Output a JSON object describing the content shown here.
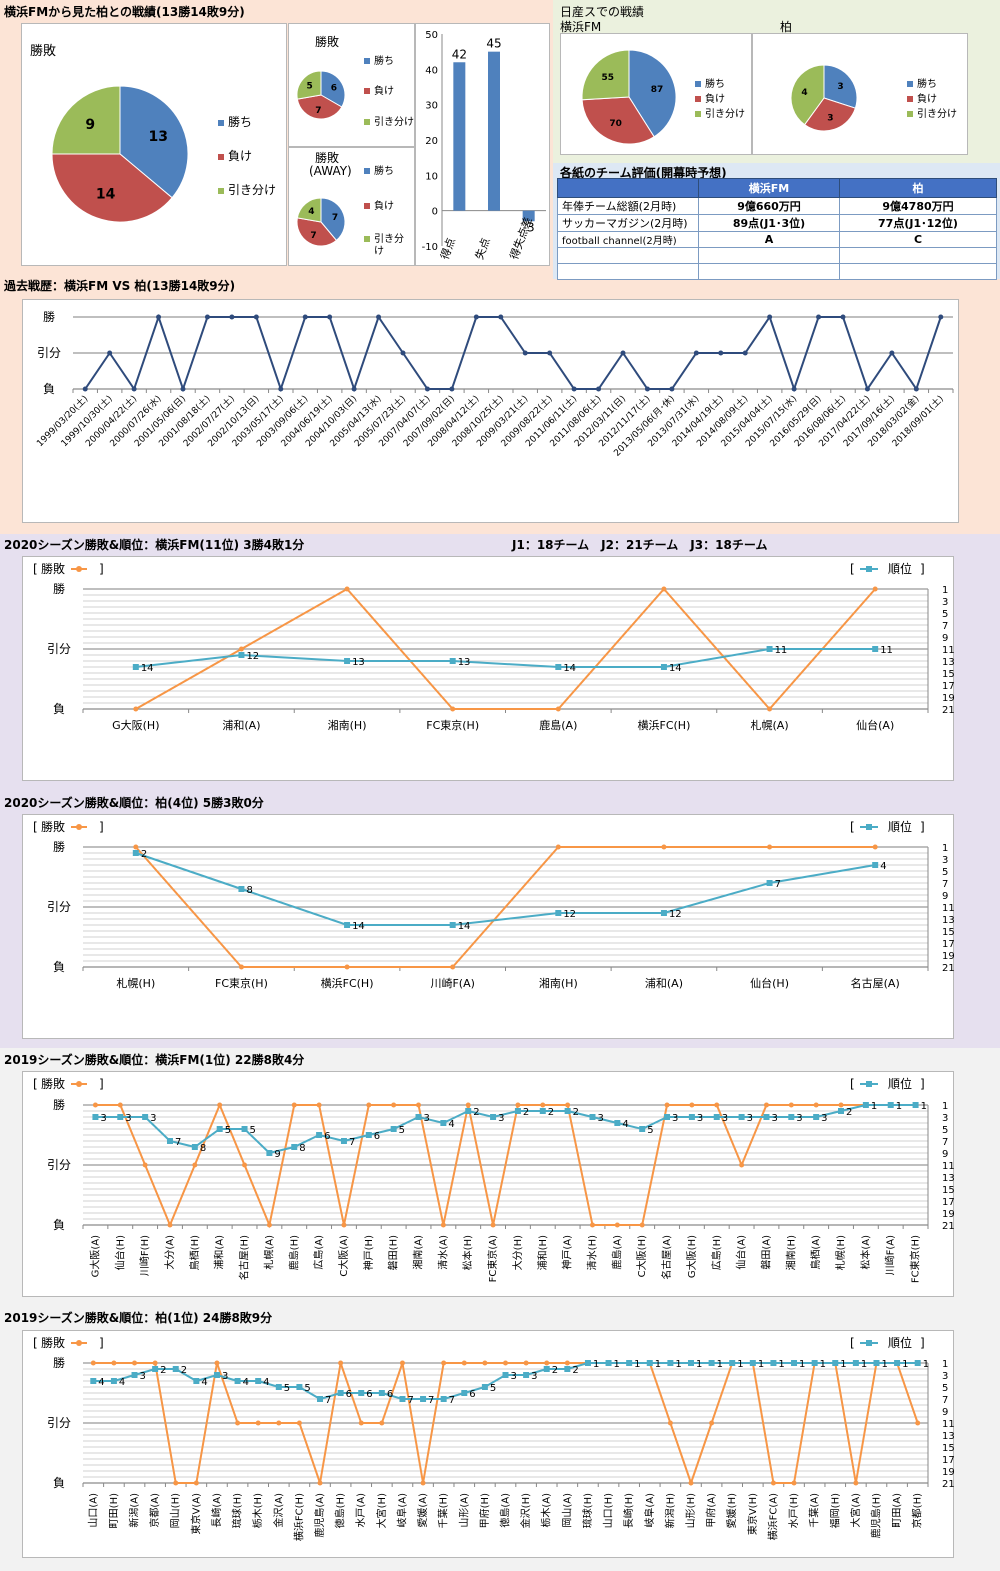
{
  "sections": {
    "record_title": "横浜FMから見た柏との戦績(13勝14敗9分)",
    "nissan_title": "日産スでの戦績",
    "eval_title": "各紙のチーム評価(開幕時予想)",
    "history_title": "過去戦歴：横浜FM VS 柏(13勝14敗9分)",
    "fm2020_title": "2020シーズン勝敗&順位：横浜FM(11位) 3勝4敗1分",
    "fm2020_note": "J1：18チーム　J2：21チーム　J3：18チーム",
    "kashiwa2020_title": "2020シーズン勝敗&順位：柏(4位) 5勝3敗0分",
    "fm2019_title": "2019シーズン勝敗&順位：横浜FM(1位) 22勝8敗4分",
    "kashiwa2019_title": "2019シーズン勝敗&順位：柏(1位) 24勝8敗9分"
  },
  "legend": {
    "win": "勝ち",
    "loss": "負け",
    "draw": "引き分け",
    "draw_wrapped": [
      "引き分",
      "け"
    ]
  },
  "pie_titles": {
    "main": "勝敗",
    "home": "勝敗",
    "away": [
      "勝敗",
      "(AWAY)"
    ],
    "nissan_fm": "横浜FM",
    "nissan_kashiwa": "柏"
  },
  "line_legend": {
    "result_label": "勝敗",
    "rank_label": "順位"
  },
  "colors": {
    "win": "#4f81bd",
    "loss": "#c0504d",
    "draw": "#9bbb59",
    "result_line": "#f79646",
    "rank_line": "#4bacc6",
    "history_line": "#2f4b7c",
    "bar": "#4f81bd"
  },
  "eval_table": {
    "headers": [
      "",
      "横浜FM",
      "柏"
    ],
    "rows": [
      [
        "年俸チーム総額(2月時)",
        "9億660万円",
        "9億4780万円"
      ],
      [
        "サッカーマガジン(2月時)",
        "89点(J1･3位)",
        "77点(J1･12位)"
      ],
      [
        "football channel(2月時)",
        "A",
        "C"
      ],
      [
        "",
        "",
        ""
      ],
      [
        "",
        "",
        ""
      ]
    ]
  },
  "chart_data": [
    {
      "id": "record-pie",
      "type": "pie",
      "title": "勝敗",
      "labels": [
        "勝ち",
        "負け",
        "引き分け"
      ],
      "values": [
        13,
        14,
        9
      ]
    },
    {
      "id": "home-pie",
      "type": "pie",
      "title": "勝敗",
      "labels": [
        "勝ち",
        "負け",
        "引き分け"
      ],
      "values": [
        6,
        7,
        5
      ]
    },
    {
      "id": "away-pie",
      "type": "pie",
      "title": "勝敗 (AWAY)",
      "labels": [
        "勝ち",
        "負け",
        "引き分け"
      ],
      "values": [
        7,
        7,
        4
      ]
    },
    {
      "id": "goals-bar",
      "type": "bar",
      "categories": [
        "得点",
        "失点",
        "得失点差"
      ],
      "values": [
        42,
        45,
        -3
      ],
      "ylim": [
        -10,
        50
      ],
      "yticks": [
        -10,
        0,
        10,
        20,
        30,
        40,
        50
      ]
    },
    {
      "id": "nissan-fm-pie",
      "type": "pie",
      "title": "横浜FM",
      "labels": [
        "勝ち",
        "負け",
        "引き分け"
      ],
      "values": [
        87,
        70,
        55
      ]
    },
    {
      "id": "nissan-kashiwa-pie",
      "type": "pie",
      "title": "柏",
      "labels": [
        "勝ち",
        "負け",
        "引き分け"
      ],
      "values": [
        3,
        3,
        4
      ]
    },
    {
      "id": "history-line",
      "type": "line",
      "ylabels": [
        "勝",
        "引分",
        "負"
      ],
      "x": [
        "1999/03/20(土)",
        "1999/10/30(土)",
        "2000/04/22(土)",
        "2000/07/26(水)",
        "2001/05/06(日)",
        "2001/08/18(土)",
        "2002/07/27(土)",
        "2002/10/13(日)",
        "2003/05/17(土)",
        "2003/09/06(土)",
        "2004/06/19(土)",
        "2004/10/03(日)",
        "2005/04/13(水)",
        "2005/07/23(土)",
        "2007/04/07(土)",
        "2007/09/02(日)",
        "2008/04/12(土)",
        "2008/10/25(土)",
        "2009/03/21(土)",
        "2009/08/22(土)",
        "2011/06/11(土)",
        "2011/08/06(土)",
        "2012/03/11(日)",
        "2012/11/17(土)",
        "2013/05/06(月･休)",
        "2013/07/31(水)",
        "2014/04/19(土)",
        "2014/08/09(土)",
        "2015/04/04(土)",
        "2015/07/15(水)",
        "2016/05/29(日)",
        "2016/08/06(土)",
        "2017/04/22(土)",
        "2017/09/16(土)",
        "2018/03/02(金)",
        "2018/09/01(土)"
      ],
      "result": [
        0,
        1,
        0,
        2,
        0,
        2,
        2,
        2,
        0,
        2,
        2,
        0,
        2,
        1,
        0,
        0,
        2,
        2,
        1,
        1,
        0,
        0,
        1,
        0,
        0,
        1,
        1,
        1,
        2,
        0,
        2,
        2,
        0,
        1,
        0,
        2
      ]
    },
    {
      "id": "fm2020-line",
      "type": "line",
      "ylabels": [
        "勝",
        "引分",
        "負"
      ],
      "rank_ticks": [
        1,
        3,
        5,
        7,
        9,
        11,
        13,
        15,
        17,
        19,
        21
      ],
      "x": [
        "G大阪(H)",
        "浦和(A)",
        "湘南(H)",
        "FC東京(H)",
        "鹿島(A)",
        "横浜FC(H)",
        "札幌(A)",
        "仙台(A)"
      ],
      "result": [
        0,
        1,
        2,
        0,
        0,
        2,
        0,
        2
      ],
      "rank": [
        14,
        12,
        13,
        13,
        14,
        14,
        11,
        11
      ]
    },
    {
      "id": "kashiwa2020-line",
      "type": "line",
      "ylabels": [
        "勝",
        "引分",
        "負"
      ],
      "rank_ticks": [
        1,
        3,
        5,
        7,
        9,
        11,
        13,
        15,
        17,
        19,
        21
      ],
      "x": [
        "札幌(H)",
        "FC東京(H)",
        "横浜FC(H)",
        "川崎F(A)",
        "湘南(H)",
        "浦和(A)",
        "仙台(H)",
        "名古屋(A)"
      ],
      "result": [
        2,
        0,
        0,
        0,
        2,
        2,
        2,
        2
      ],
      "rank": [
        2,
        8,
        14,
        14,
        12,
        12,
        7,
        4
      ]
    },
    {
      "id": "fm2019-line",
      "type": "line",
      "ylabels": [
        "勝",
        "引分",
        "負"
      ],
      "rank_ticks": [
        1,
        3,
        5,
        7,
        9,
        11,
        13,
        15,
        17,
        19,
        21
      ],
      "x": [
        "G大阪(A)",
        "仙台(H)",
        "川崎F(H)",
        "大分(A)",
        "鳥栖(H)",
        "浦和(A)",
        "名古屋(H)",
        "札幌(A)",
        "鹿島(H)",
        "広島(A)",
        "C大阪(A)",
        "神戸(H)",
        "磐田(H)",
        "湘南(A)",
        "清水(A)",
        "松本(H)",
        "FC東京(A)",
        "大分(H)",
        "浦和(H)",
        "神戸(A)",
        "清水(H)",
        "鹿島(A)",
        "C大阪(H)",
        "名古屋(A)",
        "G大阪(H)",
        "広島(H)",
        "仙台(A)",
        "磐田(A)",
        "湘南(H)",
        "鳥栖(A)",
        "札幌(H)",
        "松本(A)",
        "川崎F(A)",
        "FC東京(H)"
      ],
      "result": [
        2,
        2,
        1,
        0,
        1,
        2,
        1,
        0,
        2,
        2,
        0,
        2,
        2,
        2,
        0,
        2,
        0,
        2,
        2,
        2,
        0,
        0,
        0,
        2,
        2,
        2,
        1,
        2,
        2,
        2,
        2,
        2,
        2,
        2
      ],
      "rank": [
        3,
        3,
        3,
        7,
        8,
        5,
        5,
        9,
        8,
        6,
        7,
        6,
        5,
        3,
        4,
        2,
        3,
        2,
        2,
        2,
        3,
        4,
        5,
        3,
        3,
        3,
        3,
        3,
        3,
        3,
        2,
        1,
        1,
        1
      ]
    },
    {
      "id": "kashiwa2019-line",
      "type": "line",
      "ylabels": [
        "勝",
        "引分",
        "負"
      ],
      "rank_ticks": [
        1,
        3,
        5,
        7,
        9,
        11,
        13,
        15,
        17,
        19,
        21
      ],
      "x": [
        "山口(A)",
        "町田(H)",
        "新潟(A)",
        "京都(A)",
        "岡山(H)",
        "東京V(A)",
        "長崎(A)",
        "琉球(H)",
        "栃木(H)",
        "金沢(A)",
        "横浜FC(H)",
        "鹿児島(A)",
        "徳島(H)",
        "水戸(A)",
        "大宮(H)",
        "岐阜(A)",
        "愛媛(A)",
        "千葉(H)",
        "山形(A)",
        "甲府(H)",
        "徳島(A)",
        "金沢(H)",
        "栃木(A)",
        "岡山(A)",
        "琉球(H)",
        "山口(H)",
        "長崎(H)",
        "岐阜(A)",
        "新潟(H)",
        "山形(H)",
        "甲府(A)",
        "愛媛(H)",
        "東京V(H)",
        "横浜FC(A)",
        "水戸(H)",
        "千葉(A)",
        "福岡(H)",
        "大宮(A)",
        "鹿児島(H)",
        "町田(A)",
        "京都(H)"
      ],
      "result": [
        2,
        2,
        2,
        2,
        0,
        0,
        2,
        1,
        1,
        1,
        1,
        0,
        2,
        1,
        1,
        2,
        0,
        2,
        2,
        2,
        2,
        2,
        2,
        2,
        2,
        2,
        2,
        2,
        1,
        0,
        1,
        2,
        2,
        0,
        0,
        2,
        2,
        0,
        2,
        2,
        1
      ],
      "rank": [
        4,
        4,
        3,
        2,
        2,
        4,
        3,
        4,
        4,
        5,
        5,
        7,
        6,
        6,
        6,
        7,
        7,
        7,
        6,
        5,
        3,
        3,
        2,
        2,
        1,
        1,
        1,
        1,
        1,
        1,
        1,
        1,
        1,
        1,
        1,
        1,
        1,
        1,
        1,
        1,
        1
      ]
    }
  ]
}
